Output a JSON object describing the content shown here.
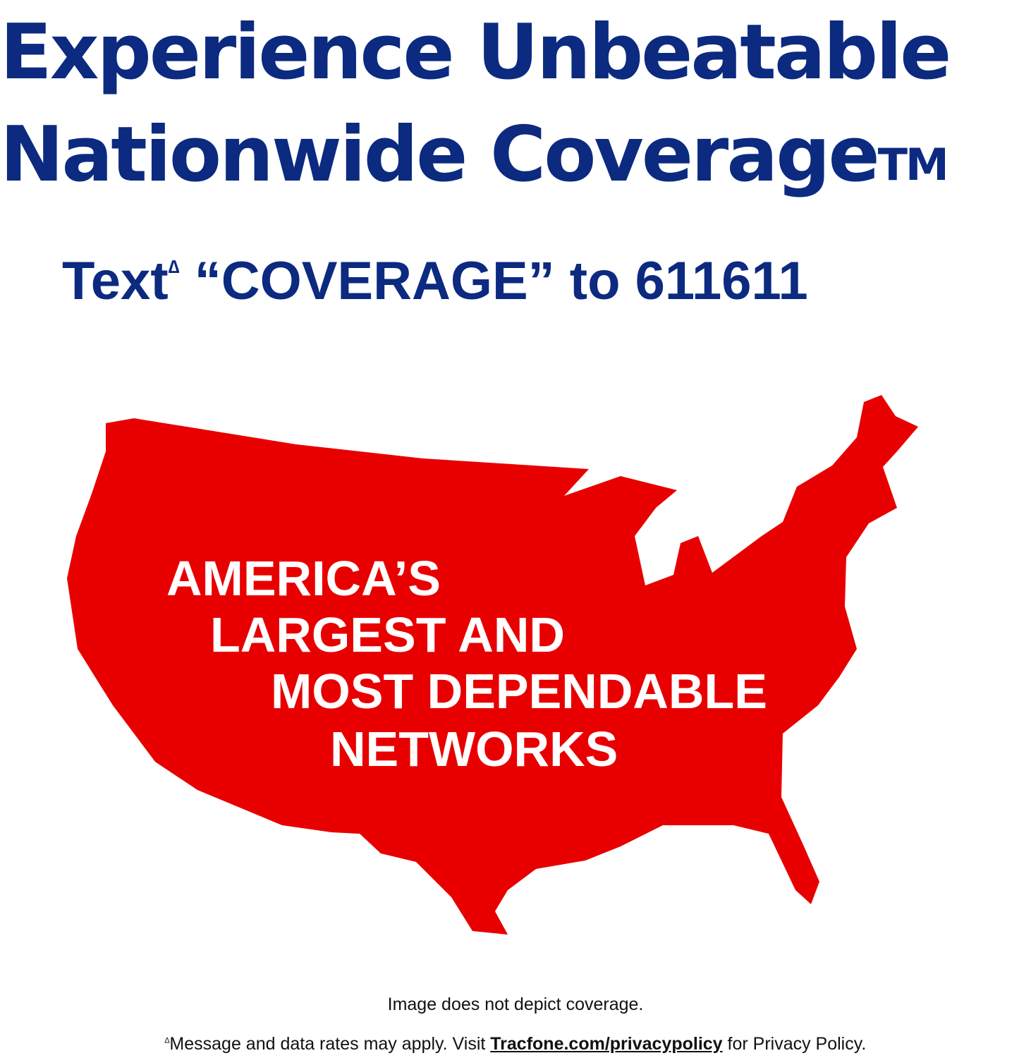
{
  "headline": {
    "line1": "Experience Unbeatable",
    "line2": "Nationwide Coverage",
    "trademark": "TM"
  },
  "cta": {
    "text": "Text",
    "marker": "∆",
    "rest": "“COVERAGE” to 611611"
  },
  "map": {
    "fill_color": "#e80000",
    "claim": [
      "AMERICA’S",
      "LARGEST AND",
      "MOST DEPENDABLE",
      "NETWORKS"
    ]
  },
  "disclaimer": {
    "image_note": "Image does not depict coverage.",
    "marker": "∆",
    "rates_prefix": "Message and data rates may apply. Visit ",
    "link": "Tracfone.com/privacypolicy",
    "rates_suffix": " for Privacy Policy."
  },
  "colors": {
    "brand_blue": "#0b2a80",
    "map_red": "#e80000"
  }
}
